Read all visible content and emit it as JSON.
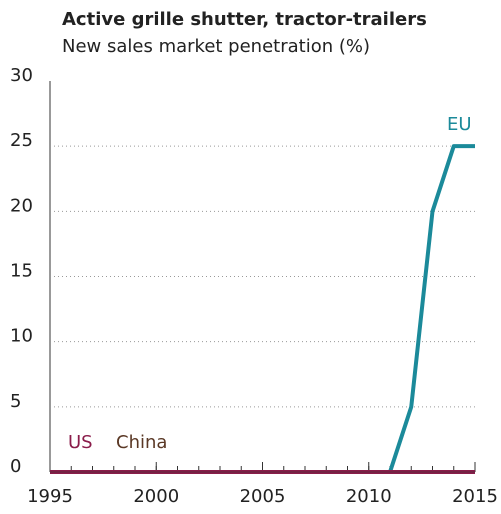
{
  "chart_data": {
    "type": "line",
    "title": "Active grille shutter, tractor-trailers",
    "subtitle": "New sales market penetration (%)",
    "x": [
      1995,
      1996,
      1997,
      1998,
      1999,
      2000,
      2001,
      2002,
      2003,
      2004,
      2005,
      2006,
      2007,
      2008,
      2009,
      2010,
      2011,
      2012,
      2013,
      2014,
      2015
    ],
    "series": [
      {
        "name": "EU",
        "color": "#1b8a9a",
        "values": [
          0,
          0,
          0,
          0,
          0,
          0,
          0,
          0,
          0,
          0,
          0,
          0,
          0,
          0,
          0,
          0,
          0,
          5,
          20,
          25,
          25
        ]
      },
      {
        "name": "China",
        "color": "#5a3825",
        "values": [
          0,
          0,
          0,
          0,
          0,
          0,
          0,
          0,
          0,
          0,
          0,
          0,
          0,
          0,
          0,
          0,
          0,
          0,
          0,
          0,
          0
        ]
      },
      {
        "name": "US",
        "color": "#8a1c4a",
        "values": [
          0,
          0,
          0,
          0,
          0,
          0,
          0,
          0,
          0,
          0,
          0,
          0,
          0,
          0,
          0,
          0,
          0,
          0,
          0,
          0,
          0
        ]
      }
    ],
    "xlim": [
      1995,
      2015
    ],
    "xticks": [
      1995,
      2000,
      2005,
      2010,
      2015
    ],
    "ylim": [
      0,
      30
    ],
    "yticks": [
      0,
      5,
      10,
      15,
      20,
      25,
      30
    ],
    "grid": true
  }
}
